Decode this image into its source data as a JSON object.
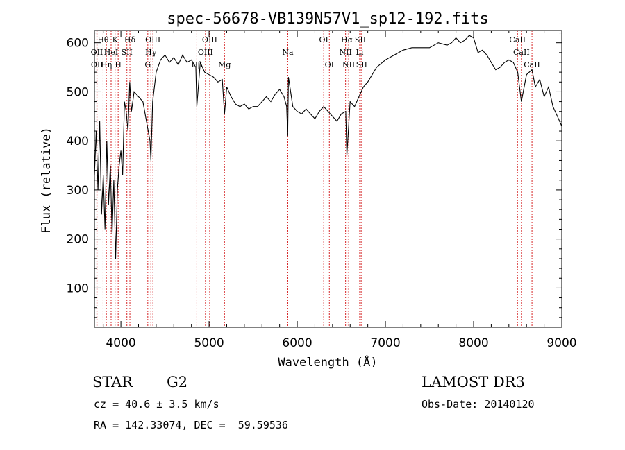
{
  "chart_data": {
    "type": "line",
    "title": "spec-56678-VB139N57V1_sp12-192.fits",
    "xlabel": "Wavelength (Å)",
    "ylabel": "Flux (relative)",
    "xlim": [
      3700,
      9000
    ],
    "ylim": [
      20,
      625
    ],
    "xticks": [
      4000,
      5000,
      6000,
      7000,
      8000,
      9000
    ],
    "yticks": [
      100,
      200,
      300,
      400,
      500,
      600
    ],
    "grid": false,
    "series": [
      {
        "name": "spectrum",
        "x": [
          3700,
          3720,
          3740,
          3760,
          3780,
          3800,
          3820,
          3840,
          3860,
          3880,
          3900,
          3920,
          3940,
          3960,
          3980,
          4000,
          4020,
          4040,
          4060,
          4080,
          4100,
          4120,
          4150,
          4200,
          4250,
          4300,
          4330,
          4340,
          4360,
          4400,
          4450,
          4500,
          4550,
          4600,
          4650,
          4700,
          4750,
          4800,
          4850,
          4861,
          4900,
          4950,
          5000,
          5050,
          5100,
          5150,
          5175,
          5200,
          5250,
          5300,
          5350,
          5400,
          5450,
          5500,
          5550,
          5600,
          5650,
          5700,
          5750,
          5800,
          5850,
          5880,
          5892,
          5900,
          5950,
          6000,
          6050,
          6100,
          6150,
          6200,
          6250,
          6300,
          6350,
          6400,
          6450,
          6500,
          6550,
          6563,
          6600,
          6650,
          6700,
          6750,
          6800,
          6900,
          7000,
          7100,
          7200,
          7300,
          7400,
          7500,
          7600,
          7700,
          7750,
          7800,
          7850,
          7900,
          7950,
          8000,
          8050,
          8100,
          8150,
          8200,
          8250,
          8300,
          8350,
          8400,
          8450,
          8500,
          8542,
          8600,
          8662,
          8700,
          8750,
          8800,
          8850,
          8900,
          8950,
          9000
        ],
        "y": [
          330,
          420,
          300,
          440,
          250,
          330,
          220,
          400,
          270,
          350,
          210,
          320,
          160,
          300,
          350,
          380,
          330,
          480,
          460,
          420,
          520,
          460,
          500,
          490,
          480,
          430,
          400,
          360,
          480,
          540,
          565,
          575,
          560,
          570,
          555,
          575,
          560,
          565,
          550,
          470,
          560,
          540,
          535,
          530,
          520,
          525,
          455,
          510,
          490,
          475,
          470,
          475,
          465,
          470,
          470,
          480,
          490,
          480,
          495,
          505,
          490,
          470,
          410,
          530,
          470,
          460,
          455,
          465,
          455,
          445,
          460,
          470,
          460,
          450,
          440,
          455,
          460,
          370,
          480,
          470,
          490,
          510,
          520,
          550,
          565,
          575,
          585,
          590,
          590,
          590,
          600,
          595,
          600,
          610,
          600,
          605,
          615,
          610,
          580,
          585,
          575,
          560,
          545,
          550,
          560,
          565,
          560,
          540,
          480,
          535,
          545,
          510,
          525,
          490,
          510,
          470,
          450,
          430
        ]
      }
    ],
    "lines": [
      {
        "name": "Hθ",
        "x": 3798,
        "row": 0
      },
      {
        "name": "OII",
        "x": 3727,
        "row": 1
      },
      {
        "name": "OII",
        "x": 3729,
        "row": 2
      },
      {
        "name": "K",
        "x": 3934,
        "row": 0
      },
      {
        "name": "HeI",
        "x": 3889,
        "row": 1
      },
      {
        "name": "Hη",
        "x": 3835,
        "row": 2
      },
      {
        "name": "Hδ",
        "x": 4102,
        "row": 0
      },
      {
        "name": "SII",
        "x": 4068,
        "row": 1
      },
      {
        "name": "H",
        "x": 3969,
        "row": 2
      },
      {
        "name": "OIII",
        "x": 4363,
        "row": 0
      },
      {
        "name": "Hγ",
        "x": 4340,
        "row": 1
      },
      {
        "name": "G",
        "x": 4305,
        "row": 2
      },
      {
        "name": "OIII",
        "x": 5007,
        "row": 0
      },
      {
        "name": "OIII",
        "x": 4959,
        "row": 1
      },
      {
        "name": "Hβ",
        "x": 4861,
        "row": 2
      },
      {
        "name": "Mg",
        "x": 5175,
        "row": 2
      },
      {
        "name": "Na",
        "x": 5893,
        "row": 1
      },
      {
        "name": "OI",
        "x": 6300,
        "row": 0
      },
      {
        "name": "OI",
        "x": 6364,
        "row": 2
      },
      {
        "name": "Hα",
        "x": 6563,
        "row": 0
      },
      {
        "name": "SII",
        "x": 6716,
        "row": 0
      },
      {
        "name": "NII",
        "x": 6548,
        "row": 1
      },
      {
        "name": "Li",
        "x": 6708,
        "row": 1
      },
      {
        "name": "NII",
        "x": 6583,
        "row": 2
      },
      {
        "name": "SII",
        "x": 6731,
        "row": 2
      },
      {
        "name": "CaII",
        "x": 8498,
        "row": 0
      },
      {
        "name": "CaII",
        "x": 8542,
        "row": 1
      },
      {
        "name": "CaII",
        "x": 8662,
        "row": 2
      }
    ],
    "line_color": "#d62728"
  },
  "info": {
    "object_class": "STAR",
    "subclass": "G2",
    "survey": "LAMOST DR3",
    "cz": "cz = 40.6 ± 3.5 km/s",
    "obs_date": "Obs-Date: 20140120",
    "coords": "RA = 142.33074, DEC =  59.59536"
  }
}
